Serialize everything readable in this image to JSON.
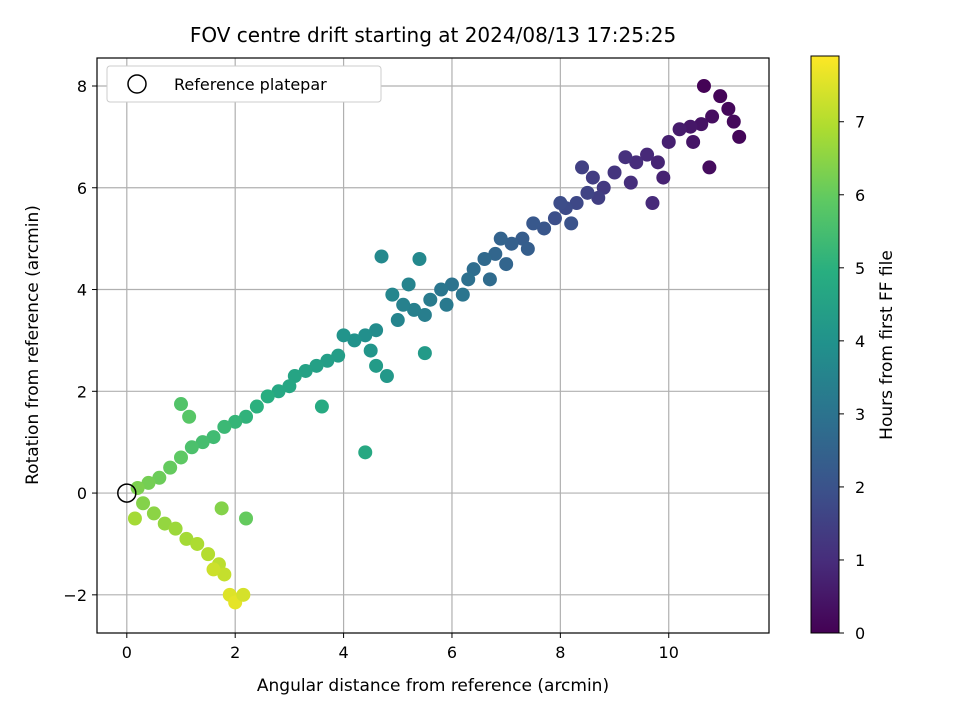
{
  "chart_data": {
    "type": "scatter",
    "title": "FOV centre drift starting at 2024/08/13 17:25:25",
    "xlabel": "Angular distance from reference (arcmin)",
    "ylabel": "Rotation from reference (arcmin)",
    "xlim": [
      -0.55,
      11.85
    ],
    "ylim": [
      -2.75,
      8.55
    ],
    "xticks": [
      0,
      2,
      4,
      6,
      8,
      10
    ],
    "yticks": [
      -2,
      0,
      2,
      4,
      6,
      8
    ],
    "grid": true,
    "legend": {
      "position": "top-left",
      "entries": [
        {
          "label": "Reference platepar",
          "marker": "open-circle"
        }
      ]
    },
    "reference_point": {
      "x": 0,
      "y": 0
    },
    "colorbar": {
      "label": "Hours from first FF file",
      "colormap": "viridis",
      "range": [
        0,
        7.9
      ],
      "ticks": [
        0,
        1,
        2,
        3,
        4,
        5,
        6,
        7
      ]
    },
    "series": [
      {
        "color_value": "hours",
        "points": [
          [
            10.65,
            8.0,
            0.05
          ],
          [
            10.95,
            7.8,
            0.1
          ],
          [
            11.3,
            7.0,
            0.12
          ],
          [
            11.2,
            7.3,
            0.2
          ],
          [
            11.1,
            7.55,
            0.15
          ],
          [
            10.8,
            7.4,
            0.3
          ],
          [
            10.6,
            7.25,
            0.4
          ],
          [
            10.4,
            7.2,
            0.5
          ],
          [
            10.2,
            7.15,
            0.6
          ],
          [
            10.0,
            6.9,
            0.7
          ],
          [
            10.75,
            6.4,
            0.25
          ],
          [
            10.45,
            6.9,
            0.45
          ],
          [
            9.8,
            6.5,
            0.8
          ],
          [
            9.6,
            6.65,
            0.9
          ],
          [
            9.9,
            6.2,
            0.75
          ],
          [
            9.7,
            5.7,
            0.95
          ],
          [
            9.4,
            6.5,
            1.0
          ],
          [
            9.2,
            6.6,
            1.1
          ],
          [
            9.0,
            6.3,
            1.2
          ],
          [
            8.8,
            6.0,
            1.3
          ],
          [
            9.3,
            6.1,
            1.05
          ],
          [
            8.6,
            6.2,
            1.4
          ],
          [
            8.4,
            6.4,
            1.5
          ],
          [
            8.7,
            5.8,
            1.45
          ],
          [
            8.5,
            5.9,
            1.6
          ],
          [
            8.3,
            5.7,
            1.7
          ],
          [
            8.1,
            5.6,
            1.8
          ],
          [
            7.9,
            5.4,
            1.9
          ],
          [
            8.0,
            5.7,
            1.85
          ],
          [
            8.2,
            5.3,
            2.0
          ],
          [
            7.7,
            5.2,
            2.1
          ],
          [
            7.5,
            5.3,
            2.15
          ],
          [
            7.3,
            5.0,
            2.3
          ],
          [
            7.1,
            4.9,
            2.4
          ],
          [
            7.4,
            4.8,
            2.35
          ],
          [
            6.9,
            5.0,
            2.5
          ],
          [
            6.8,
            4.7,
            2.6
          ],
          [
            7.0,
            4.5,
            2.55
          ],
          [
            6.6,
            4.6,
            2.7
          ],
          [
            6.4,
            4.4,
            2.8
          ],
          [
            6.7,
            4.2,
            2.75
          ],
          [
            6.3,
            4.2,
            2.9
          ],
          [
            6.0,
            4.1,
            3.0
          ],
          [
            6.2,
            3.9,
            3.05
          ],
          [
            5.8,
            4.0,
            3.1
          ],
          [
            5.9,
            3.7,
            3.2
          ],
          [
            5.6,
            3.8,
            3.25
          ],
          [
            5.5,
            3.5,
            3.35
          ],
          [
            5.3,
            3.6,
            3.4
          ],
          [
            5.1,
            3.7,
            3.45
          ],
          [
            5.0,
            3.4,
            3.55
          ],
          [
            4.9,
            3.9,
            3.6
          ],
          [
            5.2,
            4.1,
            3.5
          ],
          [
            5.4,
            4.6,
            3.65
          ],
          [
            4.7,
            4.65,
            3.7
          ],
          [
            4.6,
            3.2,
            3.8
          ],
          [
            4.4,
            3.1,
            3.9
          ],
          [
            4.2,
            3.0,
            4.0
          ],
          [
            4.0,
            3.1,
            4.05
          ],
          [
            4.5,
            2.8,
            4.1
          ],
          [
            4.8,
            2.3,
            4.2
          ],
          [
            5.5,
            2.75,
            4.25
          ],
          [
            4.6,
            2.5,
            4.3
          ],
          [
            3.9,
            2.7,
            4.35
          ],
          [
            3.7,
            2.6,
            4.4
          ],
          [
            3.5,
            2.5,
            4.45
          ],
          [
            3.3,
            2.4,
            4.5
          ],
          [
            3.1,
            2.3,
            4.6
          ],
          [
            3.0,
            2.1,
            4.65
          ],
          [
            2.8,
            2.0,
            4.7
          ],
          [
            4.4,
            0.8,
            4.75
          ],
          [
            3.6,
            1.7,
            4.8
          ],
          [
            2.6,
            1.9,
            4.9
          ],
          [
            2.4,
            1.7,
            5.0
          ],
          [
            2.2,
            1.5,
            5.1
          ],
          [
            2.0,
            1.4,
            5.2
          ],
          [
            1.8,
            1.3,
            5.3
          ],
          [
            1.6,
            1.1,
            5.4
          ],
          [
            1.4,
            1.0,
            5.5
          ],
          [
            1.2,
            0.9,
            5.6
          ],
          [
            1.0,
            1.75,
            5.7
          ],
          [
            1.15,
            1.5,
            5.8
          ],
          [
            1.0,
            0.7,
            5.9
          ],
          [
            0.8,
            0.5,
            6.0
          ],
          [
            0.6,
            0.3,
            6.1
          ],
          [
            0.4,
            0.2,
            6.2
          ],
          [
            0.2,
            0.1,
            6.3
          ],
          [
            0.3,
            -0.2,
            6.4
          ],
          [
            0.5,
            -0.4,
            6.5
          ],
          [
            0.7,
            -0.6,
            6.6
          ],
          [
            0.9,
            -0.7,
            6.7
          ],
          [
            1.1,
            -0.9,
            6.8
          ],
          [
            1.3,
            -1.0,
            6.9
          ],
          [
            1.5,
            -1.2,
            7.0
          ],
          [
            1.7,
            -1.4,
            7.1
          ],
          [
            1.9,
            -2.0,
            7.5
          ],
          [
            2.0,
            -2.15,
            7.6
          ],
          [
            2.15,
            -2.0,
            7.4
          ],
          [
            1.8,
            -1.6,
            7.2
          ],
          [
            1.6,
            -1.5,
            7.3
          ],
          [
            2.2,
            -0.5,
            6.0
          ],
          [
            1.75,
            -0.3,
            6.4
          ],
          [
            0.15,
            -0.5,
            6.8
          ]
        ]
      }
    ]
  }
}
